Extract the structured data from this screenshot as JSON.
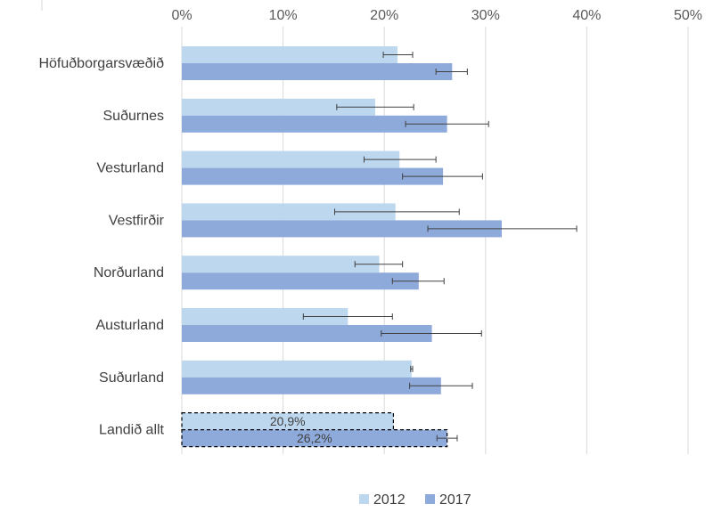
{
  "chart_data": {
    "type": "bar",
    "orientation": "horizontal",
    "categories": [
      "Höfuðborgarsvæðið",
      "Suðurnes",
      "Vesturland",
      "Vestfirðir",
      "Norðurland",
      "Austurland",
      "Suðurland",
      "Landið allt"
    ],
    "series": [
      {
        "name": "2012",
        "color": "#bdd7ee",
        "values": [
          21.3,
          19.1,
          21.5,
          21.1,
          19.5,
          16.4,
          22.7,
          20.9
        ],
        "error_low": [
          19.9,
          15.3,
          18.0,
          15.1,
          17.1,
          12.0,
          22.6,
          null
        ],
        "error_high": [
          22.8,
          22.9,
          25.1,
          27.4,
          21.8,
          20.8,
          22.8,
          null
        ]
      },
      {
        "name": "2017",
        "color": "#8eaadb",
        "values": [
          26.7,
          26.2,
          25.8,
          31.6,
          23.4,
          24.7,
          25.6,
          26.2
        ],
        "error_low": [
          25.1,
          22.1,
          21.8,
          24.3,
          20.8,
          19.7,
          22.5,
          25.2
        ],
        "error_high": [
          28.2,
          30.3,
          29.7,
          39.0,
          25.9,
          29.6,
          28.7,
          27.2
        ]
      }
    ],
    "highlighted_category": "Landið allt",
    "data_labels": {
      "Landið allt": [
        "20,9%",
        "26,2%"
      ]
    },
    "xlim": [
      0,
      50
    ],
    "xticks": [
      0,
      10,
      20,
      30,
      40,
      50
    ],
    "xtick_labels": [
      "0%",
      "10%",
      "20%",
      "30%",
      "40%",
      "50%"
    ],
    "title": "",
    "xlabel": "",
    "ylabel": "",
    "grid": "vertical",
    "legend_position": "bottom"
  }
}
